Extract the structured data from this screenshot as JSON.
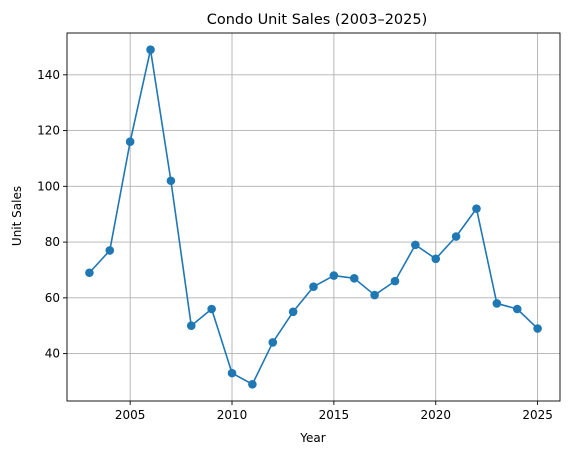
{
  "chart_data": {
    "type": "line",
    "title": "Condo Unit Sales (2003–2025)",
    "xlabel": "Year",
    "ylabel": "Unit Sales",
    "x": [
      2003,
      2004,
      2005,
      2006,
      2007,
      2008,
      2009,
      2010,
      2011,
      2012,
      2013,
      2014,
      2015,
      2016,
      2017,
      2018,
      2019,
      2020,
      2021,
      2022,
      2023,
      2024,
      2025
    ],
    "series": [
      {
        "values": [
          69,
          77,
          116,
          149,
          102,
          50,
          56,
          33,
          29,
          44,
          55,
          64,
          68,
          67,
          61,
          66,
          79,
          74,
          82,
          92,
          58,
          56,
          49
        ],
        "color": "#1f77b4",
        "marker": "circle"
      }
    ],
    "xlim": [
      2001.9,
      2026.1
    ],
    "ylim": [
      23,
      155
    ],
    "xticks": [
      2005,
      2010,
      2015,
      2020,
      2025
    ],
    "xtick_labels": [
      "2005",
      "2010",
      "2015",
      "2020",
      "2025"
    ],
    "yticks": [
      40,
      60,
      80,
      100,
      120,
      140
    ],
    "ytick_labels": [
      "40",
      "60",
      "80",
      "100",
      "120",
      "140"
    ],
    "grid": true,
    "legend": "none"
  }
}
